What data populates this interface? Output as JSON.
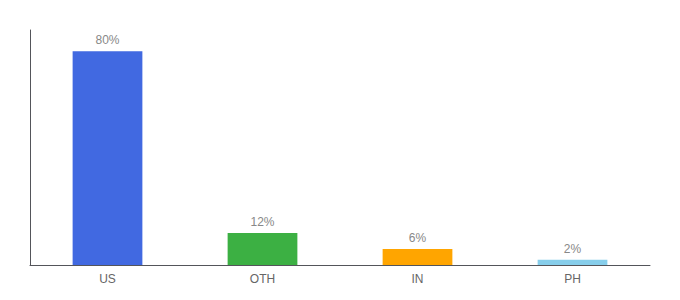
{
  "chart_data": {
    "type": "bar",
    "categories": [
      "US",
      "OTH",
      "IN",
      "PH"
    ],
    "values": [
      80,
      12,
      6,
      2
    ],
    "value_labels": [
      "80%",
      "12%",
      "6%",
      "2%"
    ],
    "colors": [
      "#4169e1",
      "#3cb043",
      "#ffa500",
      "#87ceeb"
    ],
    "ylim": [
      0,
      88
    ],
    "data_labels": true,
    "tick_labels": "x",
    "grid": false
  }
}
